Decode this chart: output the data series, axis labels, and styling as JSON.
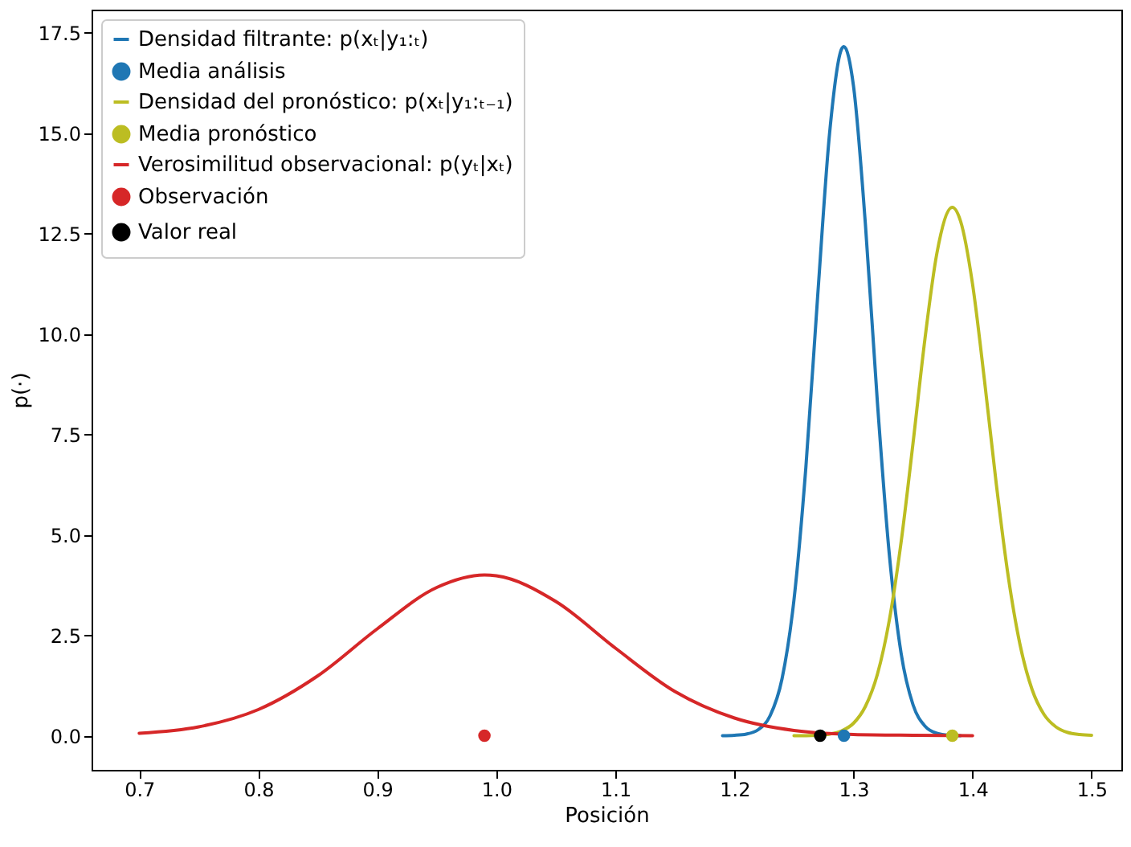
{
  "chart_data": {
    "type": "line",
    "xlabel": "Posición",
    "ylabel": "p(·)",
    "xlim": [
      0.66,
      1.525
    ],
    "ylim": [
      -0.85,
      18.07
    ],
    "xticks": [
      0.7,
      0.8,
      0.9,
      {
        "value": 1,
        "label": "1.0"
      },
      1.1,
      1.2,
      1.3,
      1.4,
      1.5
    ],
    "yticks": [
      {
        "value": 0,
        "label": "0.0"
      },
      2.5,
      {
        "value": 5,
        "label": "5.0"
      },
      7.5,
      {
        "value": 10,
        "label": "10.0"
      },
      12.5,
      {
        "value": 15,
        "label": "15.0"
      },
      17.5
    ],
    "grid": false,
    "legend": "top left",
    "series": [
      {
        "name": "Densidad filtrante: p(xₜ|y₁:ₜ)",
        "color": "#1f77b4",
        "x": [
          1.19,
          1.2,
          1.21,
          1.22,
          1.23,
          1.24,
          1.25,
          1.26,
          1.27,
          1.28,
          1.29,
          1.292,
          1.3,
          1.31,
          1.32,
          1.33,
          1.34,
          1.35,
          1.36,
          1.37,
          1.38,
          1.39
        ],
        "values": [
          0.0,
          0.01,
          0.04,
          0.15,
          0.5,
          1.42,
          3.38,
          6.68,
          10.98,
          15.02,
          17.09,
          17.15,
          16.17,
          12.73,
          8.33,
          4.54,
          2.05,
          0.77,
          0.24,
          0.06,
          0.01,
          0.0
        ]
      },
      {
        "name": "Media análisis",
        "type": "scatter",
        "color": "#1f77b4",
        "x": [
          1.292
        ],
        "values": [
          0
        ]
      },
      {
        "name": "Densidad del pronóstico: p(xₜ|y₁:ₜ₋₁)",
        "color": "#bcbd22",
        "x": [
          1.25,
          1.26,
          1.27,
          1.28,
          1.29,
          1.3,
          1.31,
          1.32,
          1.33,
          1.34,
          1.35,
          1.36,
          1.37,
          1.383,
          1.39,
          1.4,
          1.41,
          1.42,
          1.43,
          1.44,
          1.45,
          1.46,
          1.47,
          1.48,
          1.49,
          1.5
        ],
        "values": [
          0.0,
          0.0,
          0.01,
          0.04,
          0.12,
          0.31,
          0.73,
          1.52,
          2.86,
          4.82,
          7.28,
          9.87,
          12.0,
          13.15,
          12.8,
          11.24,
          8.85,
          6.25,
          3.96,
          2.25,
          1.15,
          0.53,
          0.22,
          0.08,
          0.03,
          0.01
        ]
      },
      {
        "name": "Media pronóstico",
        "type": "scatter",
        "color": "#bcbd22",
        "x": [
          1.383
        ],
        "values": [
          0
        ]
      },
      {
        "name": "Verosimilitud observacional: p(yₜ|xₜ)",
        "color": "#d62728",
        "x": [
          0.7,
          0.75,
          0.8,
          0.85,
          0.9,
          0.95,
          0.99,
          1.0,
          1.05,
          1.1,
          1.15,
          1.2,
          1.25,
          1.3,
          1.35,
          1.4
        ],
        "values": [
          0.06,
          0.22,
          0.65,
          1.49,
          2.66,
          3.69,
          4.0,
          3.98,
          3.34,
          2.18,
          1.1,
          0.44,
          0.13,
          0.03,
          0.01,
          0.0
        ]
      },
      {
        "name": "Observación",
        "type": "scatter",
        "color": "#d62728",
        "x": [
          0.99
        ],
        "values": [
          0
        ]
      },
      {
        "name": "Valor real",
        "type": "scatter",
        "color": "#000000",
        "x": [
          1.272
        ],
        "values": [
          0
        ]
      }
    ]
  }
}
